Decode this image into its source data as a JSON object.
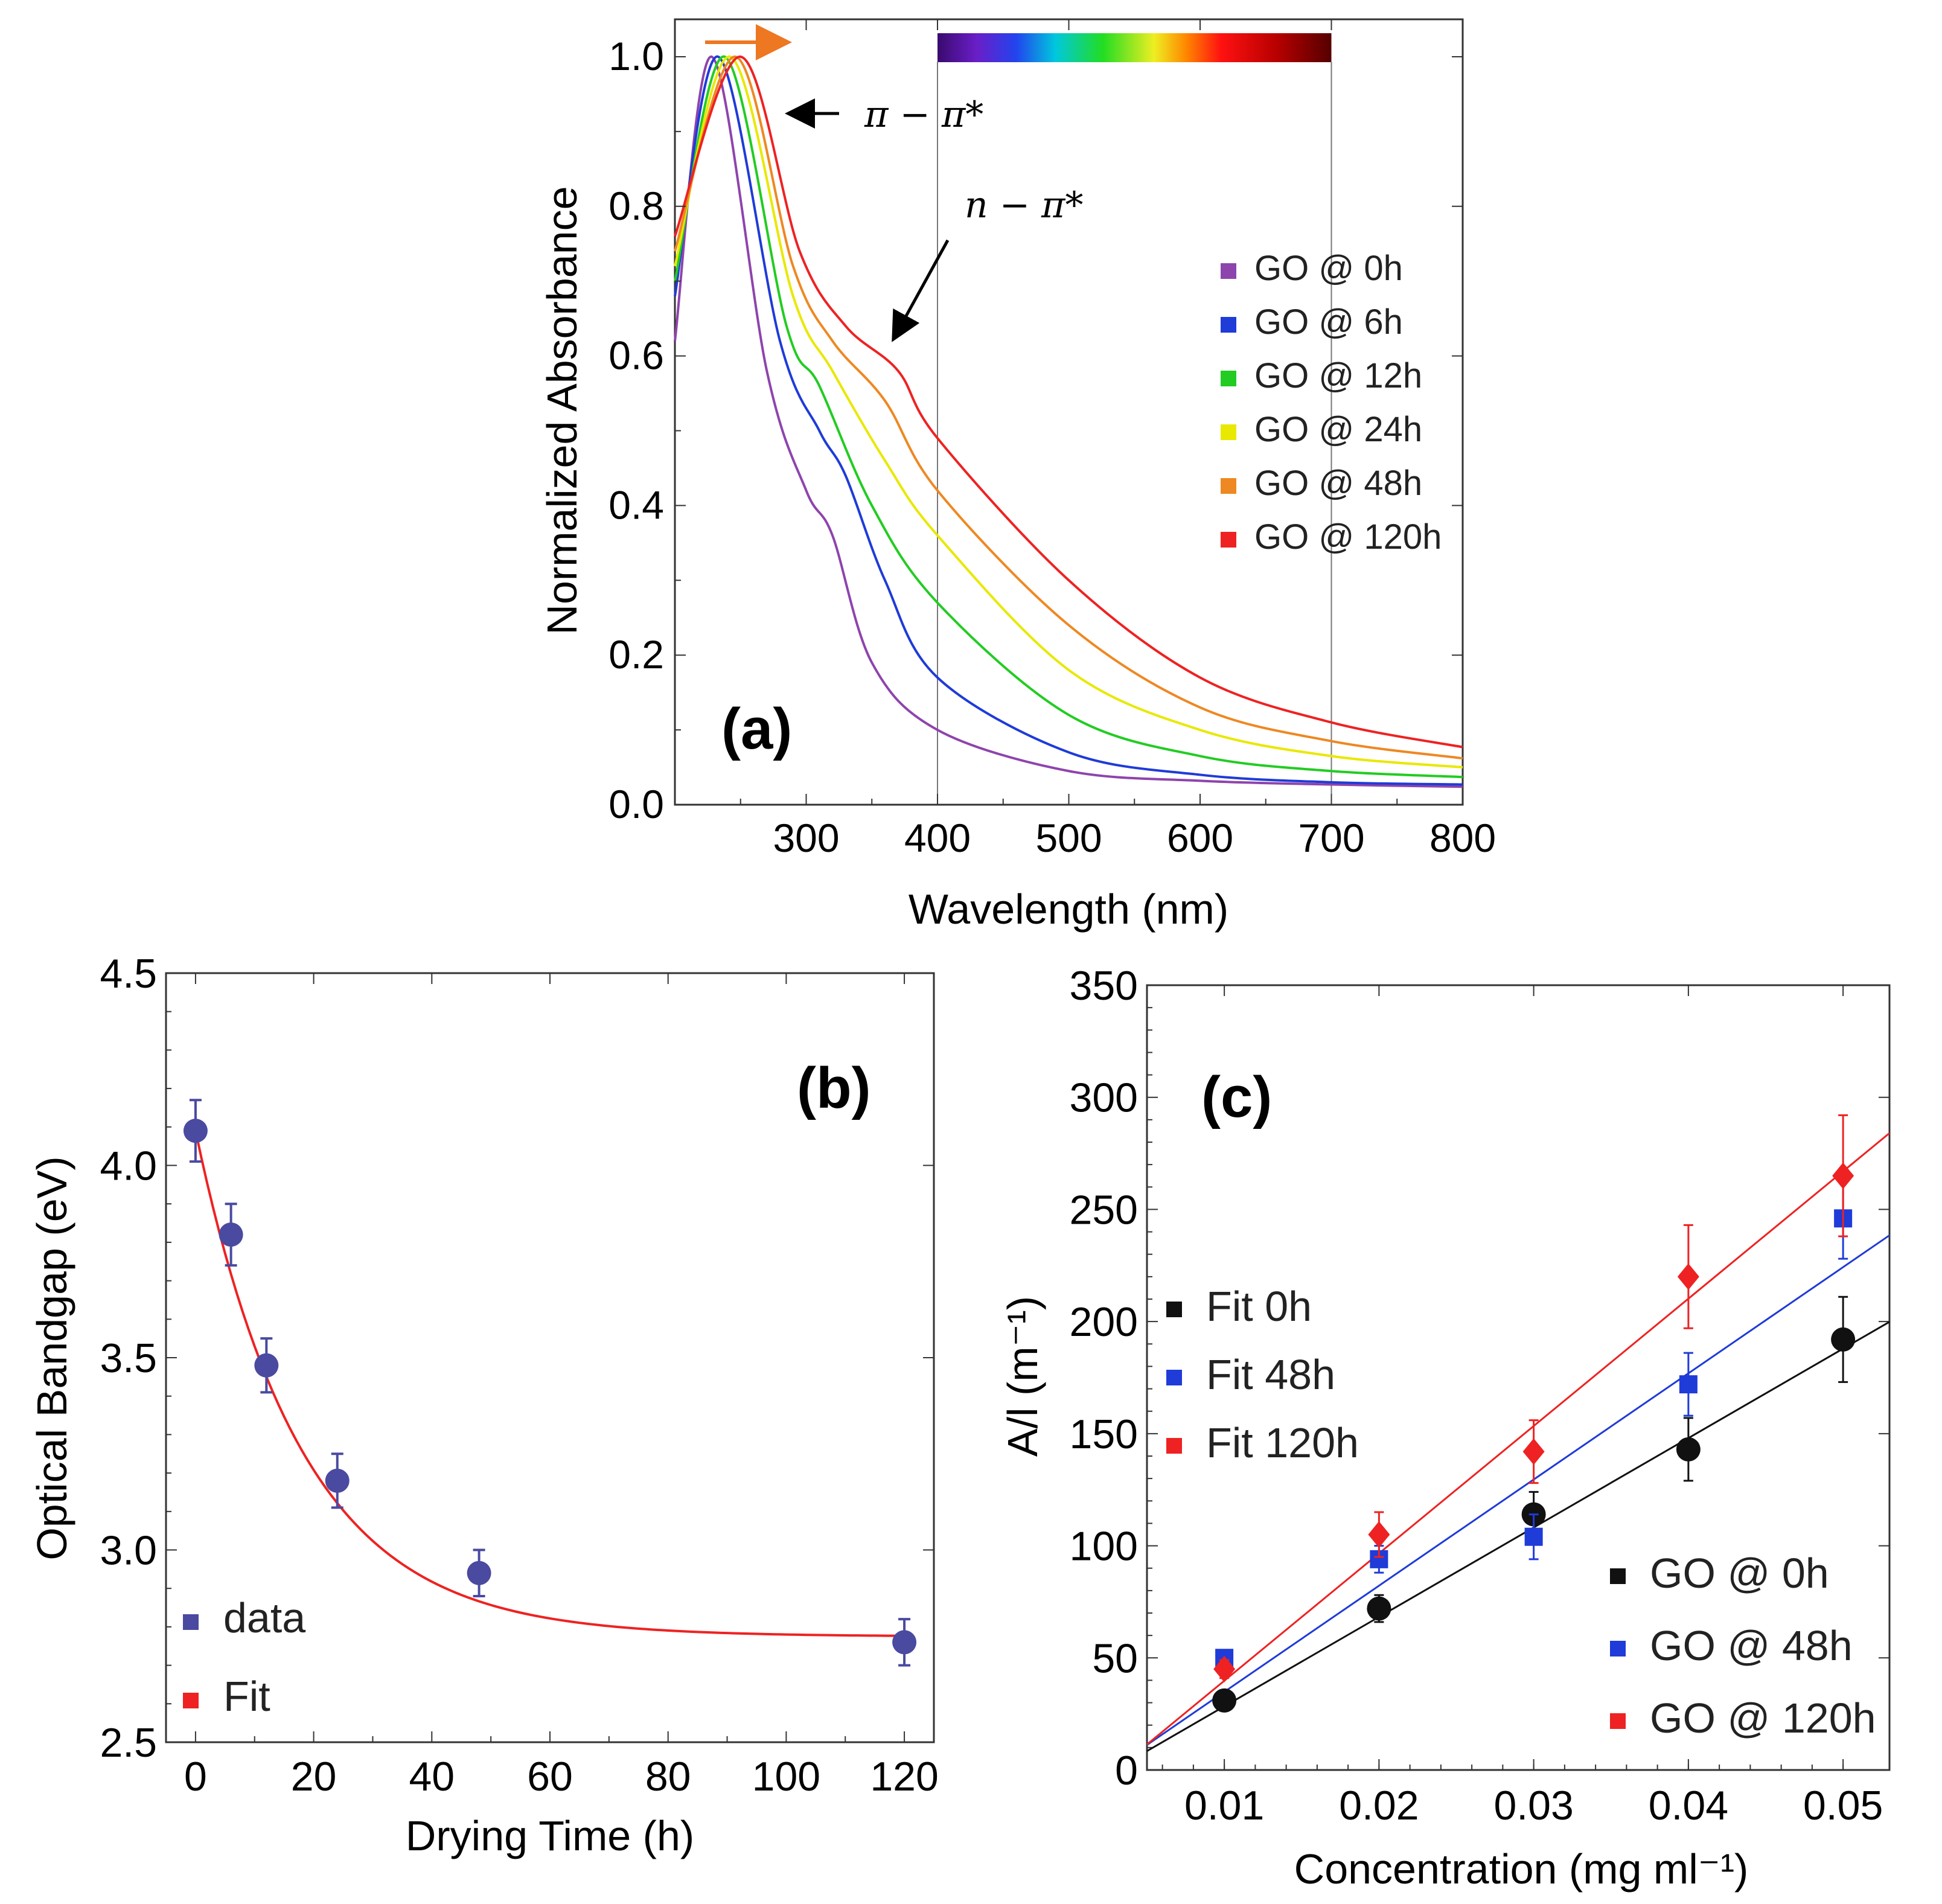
{
  "chart_data": [
    {
      "id": "a",
      "type": "line",
      "panel_label": "(a)",
      "xlabel": "Wavelength (nm)",
      "ylabel": "Normalized Absorbance",
      "xlim": [
        200,
        800
      ],
      "ylim": [
        0,
        1.05
      ],
      "x_ticks": [
        "300",
        "400",
        "500",
        "600",
        "700",
        "800"
      ],
      "y_ticks": [
        "0.0",
        "0.2",
        "0.4",
        "0.6",
        "0.8",
        "1.0"
      ],
      "visible_band": [
        400,
        700
      ],
      "annotations": {
        "pi_pi": "π − π*",
        "n_pi": "n − π*"
      },
      "series": [
        {
          "name": "GO @ 0h",
          "color": "#8e44ad",
          "peak_x": 228,
          "shoulder": {
            "x": 300,
            "y": 0.42
          },
          "points": [
            [
              200,
              0.62
            ],
            [
              228,
              1.0
            ],
            [
              270,
              0.58
            ],
            [
              300,
              0.42
            ],
            [
              320,
              0.36
            ],
            [
              350,
              0.19
            ],
            [
              400,
              0.1
            ],
            [
              500,
              0.045
            ],
            [
              600,
              0.032
            ],
            [
              700,
              0.027
            ],
            [
              800,
              0.024
            ]
          ]
        },
        {
          "name": "GO @ 6h",
          "color": "#1f3bd8",
          "peak_x": 233,
          "shoulder": {
            "x": 310,
            "y": 0.5
          },
          "points": [
            [
              200,
              0.68
            ],
            [
              233,
              1.0
            ],
            [
              280,
              0.62
            ],
            [
              310,
              0.5
            ],
            [
              330,
              0.44
            ],
            [
              360,
              0.3
            ],
            [
              400,
              0.17
            ],
            [
              500,
              0.07
            ],
            [
              600,
              0.04
            ],
            [
              700,
              0.03
            ],
            [
              800,
              0.027
            ]
          ]
        },
        {
          "name": "GO @ 12h",
          "color": "#22cc22",
          "peak_x": 238,
          "shoulder": {
            "x": 310,
            "y": 0.56
          },
          "points": [
            [
              200,
              0.7
            ],
            [
              238,
              1.0
            ],
            [
              285,
              0.64
            ],
            [
              310,
              0.56
            ],
            [
              350,
              0.4
            ],
            [
              400,
              0.27
            ],
            [
              500,
              0.12
            ],
            [
              600,
              0.065
            ],
            [
              700,
              0.045
            ],
            [
              800,
              0.037
            ]
          ]
        },
        {
          "name": "GO @ 24h",
          "color": "#e8e800",
          "peak_x": 242,
          "shoulder": {
            "x": 320,
            "y": 0.58
          },
          "points": [
            [
              200,
              0.72
            ],
            [
              242,
              1.0
            ],
            [
              290,
              0.68
            ],
            [
              320,
              0.58
            ],
            [
              360,
              0.46
            ],
            [
              400,
              0.36
            ],
            [
              500,
              0.18
            ],
            [
              600,
              0.1
            ],
            [
              700,
              0.065
            ],
            [
              800,
              0.05
            ]
          ]
        },
        {
          "name": "GO @ 48h",
          "color": "#ee8822",
          "peak_x": 246,
          "shoulder": {
            "x": 320,
            "y": 0.62
          },
          "points": [
            [
              200,
              0.74
            ],
            [
              246,
              1.0
            ],
            [
              290,
              0.72
            ],
            [
              320,
              0.62
            ],
            [
              360,
              0.54
            ],
            [
              400,
              0.42
            ],
            [
              500,
              0.24
            ],
            [
              600,
              0.13
            ],
            [
              700,
              0.085
            ],
            [
              800,
              0.062
            ]
          ]
        },
        {
          "name": "GO @ 120h",
          "color": "#ee2222",
          "peak_x": 250,
          "shoulder": {
            "x": 330,
            "y": 0.64
          },
          "points": [
            [
              200,
              0.76
            ],
            [
              250,
              1.0
            ],
            [
              295,
              0.74
            ],
            [
              330,
              0.64
            ],
            [
              370,
              0.58
            ],
            [
              400,
              0.49
            ],
            [
              500,
              0.3
            ],
            [
              600,
              0.17
            ],
            [
              700,
              0.11
            ],
            [
              800,
              0.077
            ]
          ]
        }
      ]
    },
    {
      "id": "b",
      "type": "scatter",
      "panel_label": "(b)",
      "xlabel": "Drying Time (h)",
      "ylabel": "Optical Bandgap (eV)",
      "xlim": [
        -5,
        125
      ],
      "ylim": [
        2.5,
        4.5
      ],
      "x_ticks": [
        "0",
        "20",
        "40",
        "60",
        "80",
        "100",
        "120"
      ],
      "y_ticks": [
        "2.5",
        "3.0",
        "3.5",
        "4.0",
        "4.5"
      ],
      "legend": [
        {
          "label": "data",
          "color": "#4a4aa0"
        },
        {
          "label": "Fit",
          "color": "#ee2222"
        }
      ],
      "points": [
        {
          "x": 0,
          "y": 4.09,
          "err": 0.08
        },
        {
          "x": 6,
          "y": 3.82,
          "err": 0.08
        },
        {
          "x": 12,
          "y": 3.48,
          "err": 0.07
        },
        {
          "x": 24,
          "y": 3.18,
          "err": 0.07
        },
        {
          "x": 48,
          "y": 2.94,
          "err": 0.06
        },
        {
          "x": 120,
          "y": 2.76,
          "err": 0.06
        }
      ],
      "fit": {
        "form": "y0 + A*exp(-x/t)",
        "y0": 2.775,
        "A": 1.315,
        "t": 18
      }
    },
    {
      "id": "c",
      "type": "scatter",
      "panel_label": "(c)",
      "xlabel": "Concentration (mg ml⁻¹)",
      "ylabel": "A/l (m⁻¹)",
      "xlim": [
        0.005,
        0.053
      ],
      "ylim": [
        0,
        350
      ],
      "x_ticks": [
        "0.01",
        "0.02",
        "0.03",
        "0.04",
        "0.05"
      ],
      "y_ticks": [
        "0",
        "50",
        "100",
        "150",
        "200",
        "250",
        "300",
        "350"
      ],
      "fit_legend": [
        {
          "label": "Fit 0h",
          "color": "#111111"
        },
        {
          "label": "Fit 48h",
          "color": "#1f3bd8"
        },
        {
          "label": "Fit 120h",
          "color": "#ee2222"
        }
      ],
      "data_legend": [
        {
          "label": "GO @ 0h",
          "color": "#111111"
        },
        {
          "label": "GO @ 48h",
          "color": "#1f3bd8"
        },
        {
          "label": "GO @ 120h",
          "color": "#ee2222"
        }
      ],
      "series": [
        {
          "name": "GO @ 0h",
          "color": "#111111",
          "marker": "circle",
          "x": [
            0.01,
            0.02,
            0.03,
            0.04,
            0.05
          ],
          "y": [
            31,
            72,
            114,
            143,
            192
          ],
          "err": [
            4,
            6,
            10,
            14,
            19
          ],
          "fit": {
            "slope": 3988,
            "intercept": -11.5
          }
        },
        {
          "name": "GO @ 48h",
          "color": "#1f3bd8",
          "marker": "square",
          "x": [
            0.01,
            0.02,
            0.03,
            0.04,
            0.05
          ],
          "y": [
            50,
            94,
            104,
            172,
            246
          ],
          "err": [
            3,
            6,
            10,
            14,
            18
          ],
          "fit": {
            "slope": 4735,
            "intercept": -12.5
          }
        },
        {
          "name": "GO @ 120h",
          "color": "#ee2222",
          "marker": "diamond",
          "x": [
            0.01,
            0.02,
            0.03,
            0.04,
            0.05
          ],
          "y": [
            45,
            105,
            142,
            220,
            265
          ],
          "err": [
            4,
            10,
            14,
            23,
            27
          ],
          "fit": {
            "slope": 5680,
            "intercept": -17
          }
        }
      ]
    }
  ]
}
